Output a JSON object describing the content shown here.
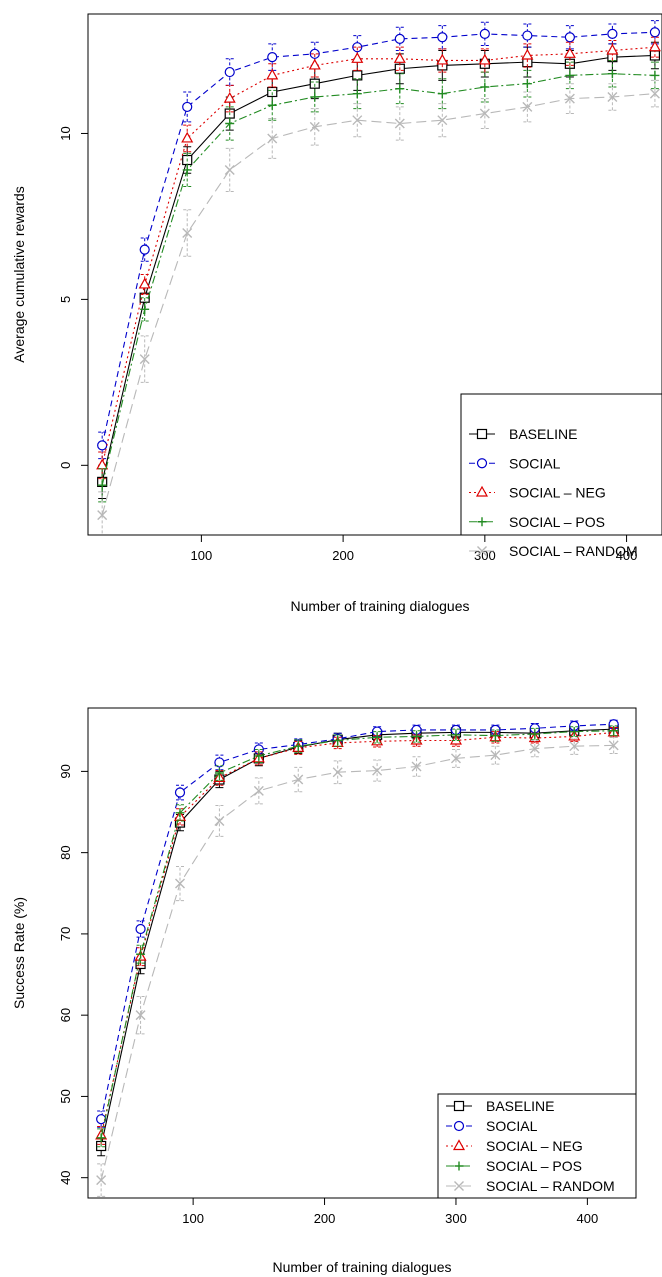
{
  "chart_data": [
    {
      "type": "line",
      "xlabel": "Number of training dialogues",
      "ylabel": "Average cumulative rewards",
      "xlim": [
        20,
        425
      ],
      "ylim": [
        -2.1,
        13.6
      ],
      "xticks": [
        100,
        200,
        300,
        400
      ],
      "yticks": [
        0,
        5,
        10
      ],
      "grid": false,
      "legend_position": "bottom-right",
      "x": [
        30,
        60,
        90,
        120,
        150,
        180,
        210,
        240,
        270,
        300,
        330,
        360,
        390,
        420
      ],
      "series": [
        {
          "name": "BASELINE",
          "color": "#000000",
          "dash": "",
          "marker": "square",
          "values": [
            -0.5,
            5.05,
            9.2,
            10.6,
            11.25,
            11.5,
            11.75,
            11.95,
            12.05,
            12.1,
            12.15,
            12.1,
            12.3,
            12.35
          ],
          "error": [
            0.5,
            0.35,
            0.4,
            0.5,
            0.4,
            0.45,
            0.45,
            0.45,
            0.45,
            0.4,
            0.45,
            0.4,
            0.4,
            0.4
          ]
        },
        {
          "name": "SOCIAL",
          "color": "#0000cc",
          "dash": "6,4",
          "marker": "circle",
          "values": [
            0.6,
            6.5,
            10.8,
            11.85,
            12.3,
            12.4,
            12.6,
            12.85,
            12.9,
            13.0,
            12.95,
            12.9,
            13.0,
            13.05
          ],
          "error": [
            0.4,
            0.35,
            0.45,
            0.4,
            0.4,
            0.35,
            0.35,
            0.35,
            0.35,
            0.35,
            0.35,
            0.35,
            0.3,
            0.35
          ]
        },
        {
          "name": "SOCIAL – NEG",
          "color": "#dd0000",
          "dash": "2,3",
          "marker": "triangle",
          "values": [
            0.0,
            5.45,
            9.85,
            11.05,
            11.75,
            12.05,
            12.25,
            12.25,
            12.2,
            12.2,
            12.35,
            12.4,
            12.5,
            12.6
          ],
          "error": [
            0.4,
            0.3,
            0.4,
            0.4,
            0.35,
            0.35,
            0.35,
            0.35,
            0.35,
            0.35,
            0.35,
            0.35,
            0.3,
            0.3
          ]
        },
        {
          "name": "SOCIAL – POS",
          "color": "#228b22",
          "dash": "8,3,2,3",
          "marker": "plus",
          "values": [
            -0.6,
            4.7,
            8.9,
            10.3,
            10.85,
            11.1,
            11.2,
            11.35,
            11.2,
            11.4,
            11.5,
            11.75,
            11.8,
            11.75
          ],
          "error": [
            0.5,
            0.35,
            0.5,
            0.5,
            0.45,
            0.45,
            0.45,
            0.45,
            0.45,
            0.45,
            0.4,
            0.4,
            0.4,
            0.4
          ]
        },
        {
          "name": "SOCIAL – RANDOM",
          "color": "#b8b8b8",
          "dash": "10,5",
          "marker": "x",
          "values": [
            -1.5,
            3.2,
            7.0,
            8.9,
            9.85,
            10.2,
            10.4,
            10.3,
            10.4,
            10.6,
            10.8,
            11.05,
            11.1,
            11.2
          ],
          "error": [
            0.7,
            0.7,
            0.7,
            0.65,
            0.6,
            0.55,
            0.5,
            0.5,
            0.5,
            0.45,
            0.45,
            0.45,
            0.4,
            0.4
          ]
        }
      ]
    },
    {
      "type": "line",
      "xlabel": "Number of training dialogues",
      "ylabel": "Success Rate (%)",
      "xlim": [
        20,
        437
      ],
      "ylim": [
        37.5,
        97.8
      ],
      "xticks": [
        100,
        200,
        300,
        400
      ],
      "yticks": [
        40,
        50,
        60,
        70,
        80,
        90
      ],
      "grid": false,
      "legend_position": "bottom-right",
      "x": [
        30,
        60,
        90,
        120,
        150,
        180,
        210,
        240,
        270,
        300,
        330,
        360,
        390,
        420
      ],
      "series": [
        {
          "name": "BASELINE",
          "color": "#000000",
          "dash": "",
          "marker": "square",
          "values": [
            43.9,
            66.3,
            83.7,
            89.0,
            91.6,
            93.0,
            93.9,
            94.5,
            94.7,
            94.8,
            94.8,
            94.7,
            95.0,
            95.2
          ],
          "error": [
            1.2,
            1.2,
            1.0,
            1.0,
            0.9,
            0.8,
            0.8,
            0.7,
            0.7,
            0.7,
            0.7,
            0.7,
            0.7,
            0.7
          ]
        },
        {
          "name": "SOCIAL",
          "color": "#0000cc",
          "dash": "6,4",
          "marker": "circle",
          "values": [
            47.2,
            70.6,
            87.4,
            91.1,
            92.7,
            93.3,
            94.0,
            94.9,
            95.1,
            95.1,
            95.1,
            95.3,
            95.6,
            95.8
          ],
          "error": [
            1.0,
            1.0,
            0.9,
            0.9,
            0.8,
            0.7,
            0.7,
            0.6,
            0.6,
            0.6,
            0.6,
            0.6,
            0.6,
            0.5
          ]
        },
        {
          "name": "SOCIAL – NEG",
          "color": "#dd0000",
          "dash": "2,3",
          "marker": "triangle",
          "values": [
            45.2,
            67.2,
            84.4,
            89.2,
            91.6,
            92.9,
            93.5,
            93.7,
            93.8,
            93.8,
            94.2,
            94.1,
            94.3,
            94.8
          ],
          "error": [
            1.1,
            1.1,
            1.0,
            0.9,
            0.8,
            0.8,
            0.7,
            0.7,
            0.7,
            0.7,
            0.7,
            0.6,
            0.6,
            0.6
          ]
        },
        {
          "name": "SOCIAL – POS",
          "color": "#228b22",
          "dash": "8,3,2,3",
          "marker": "plus",
          "values": [
            44.9,
            67.5,
            84.9,
            89.8,
            91.9,
            93.1,
            93.8,
            94.2,
            94.3,
            94.5,
            94.4,
            94.6,
            94.9,
            95.0
          ],
          "error": [
            1.1,
            1.1,
            1.0,
            0.9,
            0.8,
            0.8,
            0.7,
            0.7,
            0.7,
            0.7,
            0.7,
            0.7,
            0.6,
            0.6
          ]
        },
        {
          "name": "SOCIAL – RANDOM",
          "color": "#b8b8b8",
          "dash": "10,5",
          "marker": "x",
          "values": [
            39.7,
            60.0,
            76.2,
            83.9,
            87.6,
            89.0,
            89.9,
            90.1,
            90.6,
            91.6,
            92.0,
            92.8,
            93.1,
            93.2
          ],
          "error": [
            2.0,
            2.3,
            2.1,
            1.9,
            1.6,
            1.5,
            1.4,
            1.3,
            1.2,
            1.1,
            1.1,
            1.0,
            1.0,
            1.0
          ]
        }
      ]
    }
  ]
}
